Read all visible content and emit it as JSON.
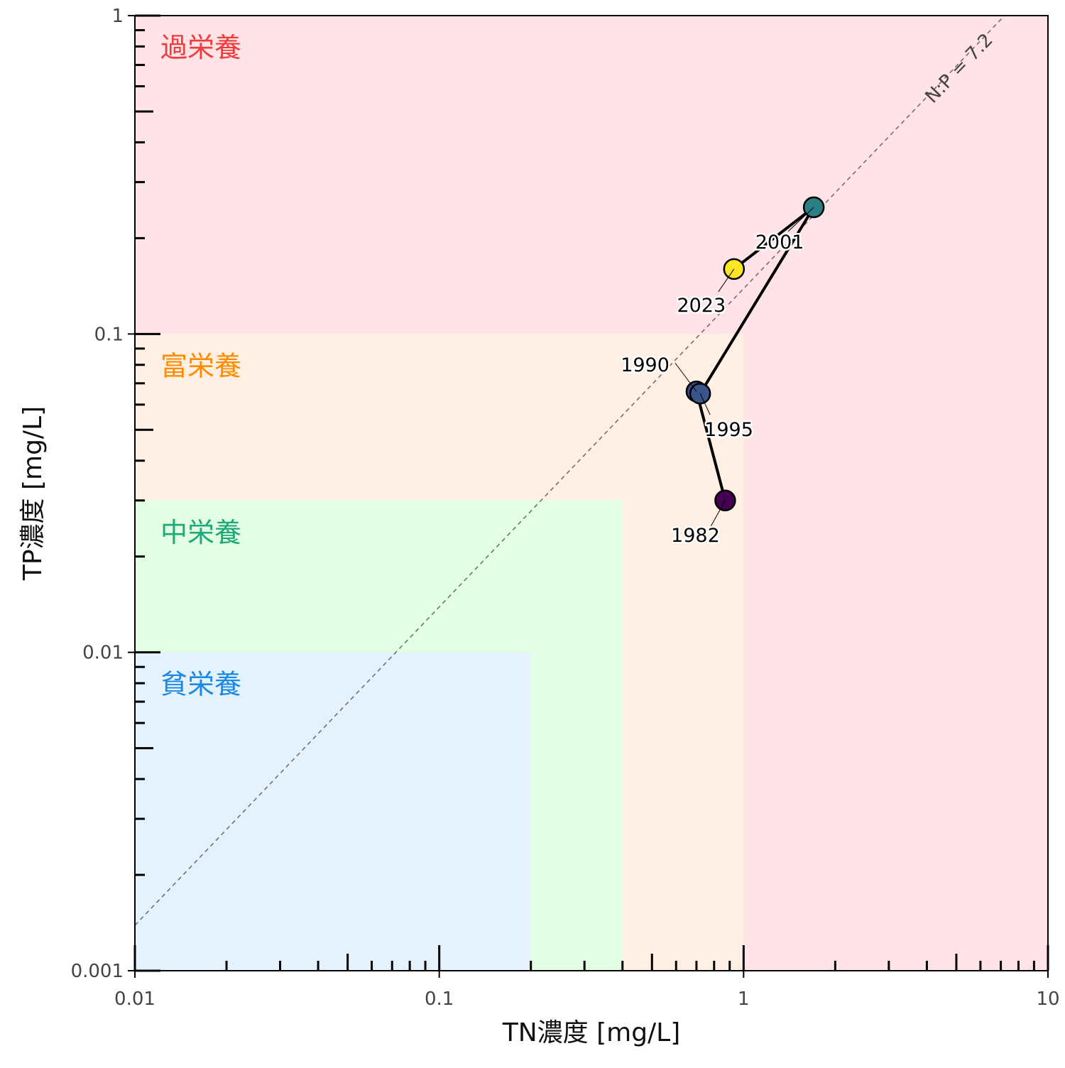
{
  "chart_data": {
    "type": "scatter",
    "xlabel": "TN濃度 [mg/L]",
    "ylabel": "TP濃度 [mg/L]",
    "xscale": "log",
    "yscale": "log",
    "xlim": [
      0.01,
      10
    ],
    "ylim": [
      0.001,
      1
    ],
    "grid": false,
    "x_ticks": [
      {
        "value": 0.01,
        "label": "0.01"
      },
      {
        "value": 0.1,
        "label": "0.1"
      },
      {
        "value": 1,
        "label": "1"
      },
      {
        "value": 10,
        "label": "10"
      }
    ],
    "y_ticks": [
      {
        "value": 0.001,
        "label": "0.001"
      },
      {
        "value": 0.01,
        "label": "0.01"
      },
      {
        "value": 0.1,
        "label": "0.1"
      },
      {
        "value": 1,
        "label": "1"
      }
    ],
    "zones": [
      {
        "label": "過栄養",
        "tn_max": 10,
        "tp_max": 1,
        "fill": "#ffe3e6",
        "text_color": "#f03c3c"
      },
      {
        "label": "富栄養",
        "tn_max": 1,
        "tp_max": 0.1,
        "fill": "#fff0e3",
        "text_color": "#ff8c00"
      },
      {
        "label": "中栄養",
        "tn_max": 0.4,
        "tp_max": 0.03,
        "fill": "#e3ffe3",
        "text_color": "#1fa87a"
      },
      {
        "label": "貧栄養",
        "tn_max": 0.2,
        "tp_max": 0.01,
        "fill": "#e3f2fd",
        "text_color": "#1e88e5"
      }
    ],
    "reference_line": {
      "label": "N:P = 7.2",
      "ratio": 7.2,
      "color": "#707070"
    },
    "series": [
      {
        "points": [
          {
            "year": "1982",
            "tn": 0.87,
            "tp": 0.03,
            "color": "#440154"
          },
          {
            "year": "1990",
            "tn": 0.7,
            "tp": 0.066,
            "color": "#404688"
          },
          {
            "year": "1995",
            "tn": 0.72,
            "tp": 0.065,
            "color": "#39568c"
          },
          {
            "year": "2001",
            "tn": 1.7,
            "tp": 0.25,
            "color": "#2a7f84"
          },
          {
            "year": "2023",
            "tn": 0.93,
            "tp": 0.16,
            "color": "#fde725"
          }
        ]
      }
    ]
  }
}
